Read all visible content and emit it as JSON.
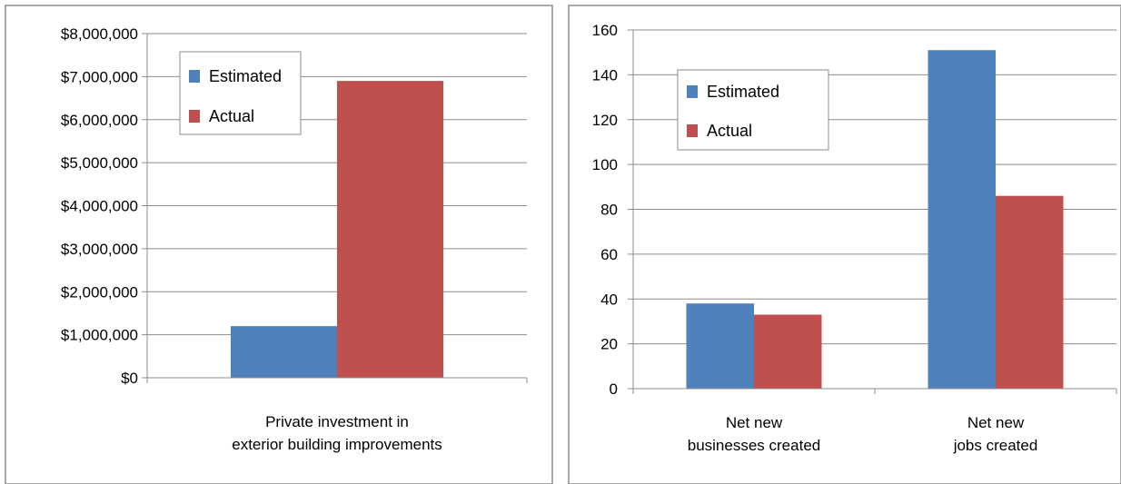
{
  "chart_data": [
    {
      "type": "bar",
      "categories": [
        "Private investment in exterior building improvements"
      ],
      "category_lines": [
        [
          "Private investment in",
          "exterior building improvements"
        ]
      ],
      "series": [
        {
          "name": "Estimated",
          "color": "#4f81bd",
          "values": [
            1200000
          ]
        },
        {
          "name": "Actual",
          "color": "#c0504d",
          "values": [
            6900000
          ]
        }
      ],
      "ylim": [
        0,
        8000000
      ],
      "yticks": [
        0,
        1000000,
        2000000,
        3000000,
        4000000,
        5000000,
        6000000,
        7000000,
        8000000
      ],
      "ytick_labels": [
        "$0",
        "$1,000,000",
        "$2,000,000",
        "$3,000,000",
        "$4,000,000",
        "$5,000,000",
        "$6,000,000",
        "$7,000,000",
        "$8,000,000"
      ],
      "grid": true,
      "legend": "top-left"
    },
    {
      "type": "bar",
      "categories": [
        "Net new businesses created",
        "Net new jobs created"
      ],
      "category_lines": [
        [
          "Net new",
          "businesses created"
        ],
        [
          "Net new",
          "jobs created"
        ]
      ],
      "series": [
        {
          "name": "Estimated",
          "color": "#4f81bd",
          "values": [
            38,
            151
          ]
        },
        {
          "name": "Actual",
          "color": "#c0504d",
          "values": [
            33,
            86
          ]
        }
      ],
      "ylim": [
        0,
        160
      ],
      "yticks": [
        0,
        20,
        40,
        60,
        80,
        100,
        120,
        140,
        160
      ],
      "ytick_labels": [
        "0",
        "20",
        "40",
        "60",
        "80",
        "100",
        "120",
        "140",
        "160"
      ],
      "grid": true,
      "legend": "top-left"
    }
  ]
}
